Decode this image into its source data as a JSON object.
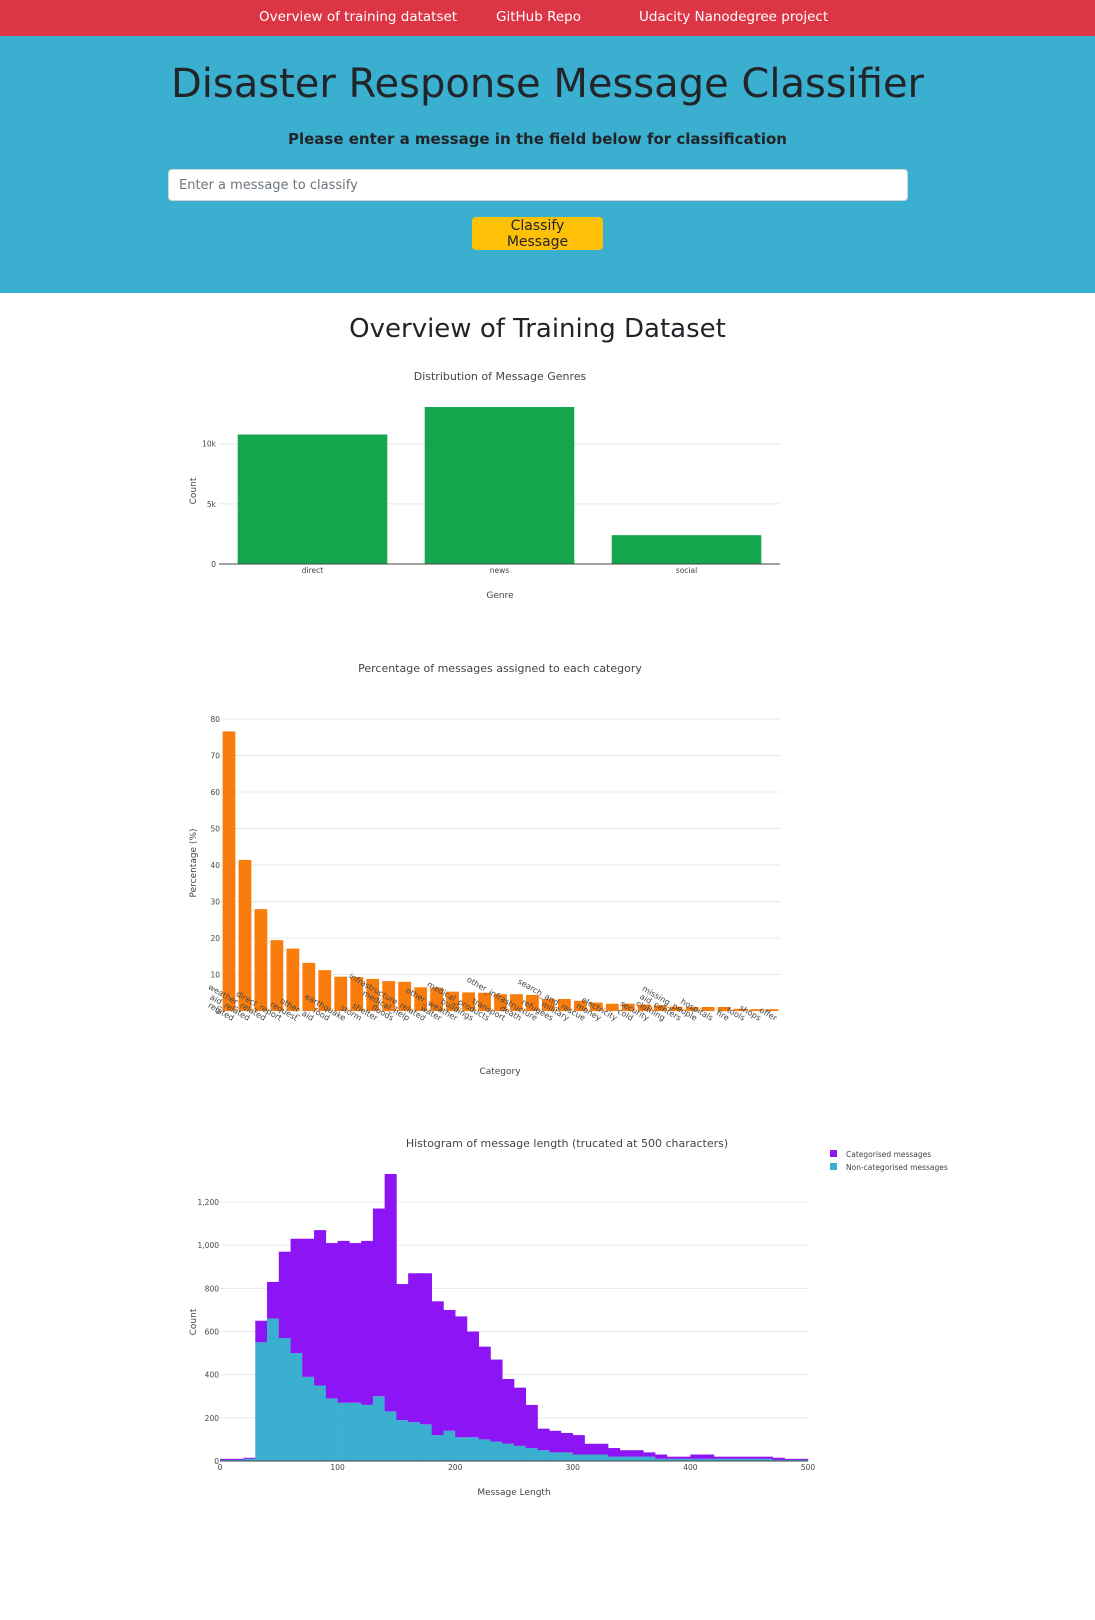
{
  "nav": {
    "items": [
      {
        "label": "Overview of training datatset"
      },
      {
        "label": "GitHub Repo"
      },
      {
        "label": "Udacity Nanodegree project"
      }
    ]
  },
  "hero": {
    "title": "Disaster Response Message Classifier",
    "subtitle": "Please enter a message in the field below for classification",
    "input_placeholder": "Enter a message to classify",
    "input_value": "",
    "button_label": "Classify Message"
  },
  "overview": {
    "title": "Overview of Training Dataset"
  },
  "colors": {
    "nav": "#dc3545",
    "hero": "#3bafcf",
    "button": "#ffc107",
    "genre_bar": "#13a64d",
    "category_bar": "#f87d0c",
    "categorised": "#8c14f5",
    "non_categorised": "#3aafcf"
  },
  "chart_data": [
    {
      "type": "bar",
      "title": "Distribution of Message Genres",
      "xlabel": "Genre",
      "ylabel": "Count",
      "categories": [
        "direct",
        "news",
        "social"
      ],
      "values": [
        10766,
        13054,
        2396
      ],
      "ylim": [
        0,
        13054
      ],
      "yticks": [
        0,
        5000,
        10000
      ],
      "ytick_labels": [
        "0",
        "5k",
        "10k"
      ],
      "grid": true
    },
    {
      "type": "bar",
      "title": "Percentage of messages assigned to each category",
      "xlabel": "Category",
      "ylabel": "Percentage (%)",
      "categories": [
        "related",
        "aid_related",
        "weather_related",
        "direct_report",
        "request",
        "other_aid",
        "food",
        "earthquake",
        "storm",
        "shelter",
        "floods",
        "medical_help",
        "infrastructure_related",
        "water",
        "other_weather",
        "buildings",
        "medical_products",
        "transport",
        "death",
        "other_infrastructure",
        "refugees",
        "military",
        "search_and_rescue",
        "money",
        "electricity",
        "cold",
        "security",
        "clothing",
        "aid_centers",
        "missing_people",
        "hospitals",
        "fire",
        "tools",
        "shops",
        "offer"
      ],
      "values": [
        76.6,
        41.4,
        27.9,
        19.4,
        17.1,
        13.2,
        11.2,
        9.4,
        9.3,
        8.8,
        8.2,
        8.0,
        6.5,
        6.4,
        5.3,
        5.1,
        5.0,
        4.6,
        4.6,
        4.4,
        3.3,
        3.3,
        2.8,
        2.3,
        2.0,
        2.0,
        1.8,
        1.6,
        1.2,
        1.1,
        1.1,
        1.1,
        0.6,
        0.5,
        0.5
      ],
      "ylim": [
        0,
        80
      ],
      "yticks": [
        0,
        10,
        20,
        30,
        40,
        50,
        60,
        70,
        80
      ],
      "grid": true
    },
    {
      "type": "bar",
      "title": "Histogram of message length (trucated at 500 characters)",
      "xlabel": "Message Length",
      "ylabel": "Count",
      "bin_width": 10,
      "bin_start": 0,
      "xlim": [
        0,
        500
      ],
      "ylim": [
        0,
        1330
      ],
      "xticks": [
        0,
        100,
        200,
        300,
        400,
        500
      ],
      "yticks": [
        0,
        200,
        400,
        600,
        800,
        1000,
        1200
      ],
      "legend_position": "top-right",
      "stacked": true,
      "series": [
        {
          "name": "Non-categorised messages",
          "values": [
            5,
            5,
            10,
            550,
            660,
            570,
            500,
            390,
            350,
            290,
            270,
            270,
            260,
            300,
            230,
            190,
            180,
            170,
            120,
            140,
            110,
            110,
            100,
            90,
            80,
            70,
            60,
            50,
            40,
            40,
            30,
            30,
            30,
            20,
            20,
            20,
            20,
            10,
            10,
            10,
            10,
            10,
            10,
            10,
            10,
            10,
            10,
            5,
            5,
            5
          ]
        },
        {
          "name": "Categorised messages",
          "values": [
            5,
            5,
            5,
            100,
            170,
            400,
            530,
            640,
            720,
            720,
            750,
            740,
            760,
            870,
            1100,
            630,
            690,
            700,
            620,
            560,
            560,
            490,
            430,
            380,
            300,
            270,
            200,
            100,
            100,
            90,
            90,
            50,
            50,
            40,
            30,
            30,
            20,
            20,
            10,
            10,
            20,
            20,
            10,
            10,
            10,
            10,
            10,
            10,
            5,
            5
          ]
        }
      ]
    }
  ]
}
